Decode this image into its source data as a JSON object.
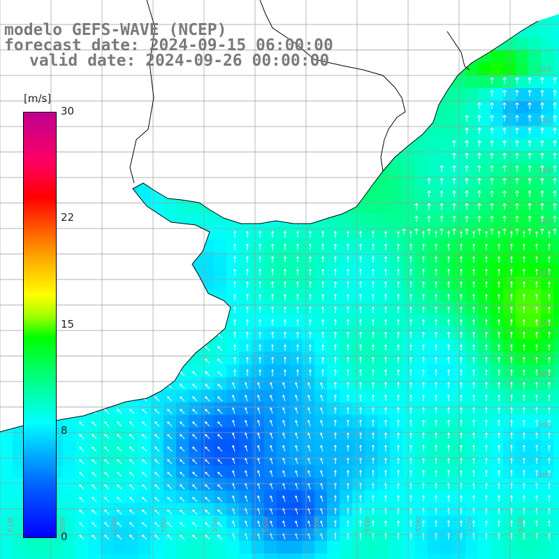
{
  "title": {
    "model": "modelo GEFS-WAVE (NCEP)",
    "forecast": "forecast date: 2024-09-15 06:00:00",
    "valid": "valid date: 2024-09-26 00:00:00"
  },
  "colorbar": {
    "unit": "[m/s]",
    "ticks": [
      "30",
      "22",
      "15",
      "8",
      "0"
    ],
    "tick_values": [
      30,
      22,
      15,
      8,
      0
    ],
    "max": 30,
    "colors": [
      "#0000ff",
      "#0060ff",
      "#00c8ff",
      "#00ffff",
      "#00ff60",
      "#00ff00",
      "#ffff00",
      "#ff6000",
      "#ff0000",
      "#c00090"
    ]
  },
  "grid": {
    "lat_labels": [
      "32S",
      "33S",
      "34S",
      "35S",
      "36S",
      "37S",
      "38S",
      "39S",
      "40S"
    ],
    "lon_labels": [
      "61W",
      "60W",
      "59W",
      "58W",
      "57W",
      "56W",
      "55W",
      "54W",
      "53W",
      "52W",
      "51W"
    ]
  },
  "land_color": "#ffffff",
  "coast_color": "#000000",
  "arrow_color": "#ffffff"
}
